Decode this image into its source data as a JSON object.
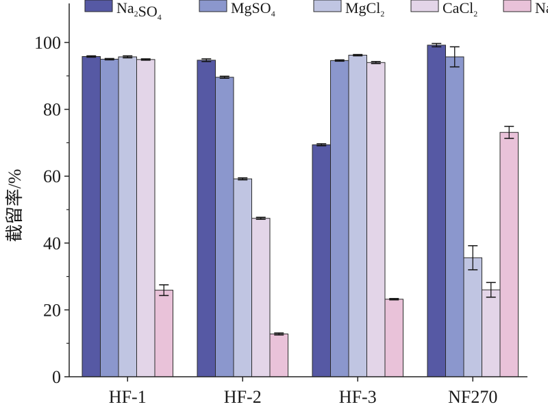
{
  "chart_data": {
    "type": "bar",
    "categories": [
      "HF-1",
      "HF-2",
      "HF-3",
      "NF270"
    ],
    "series": [
      {
        "name": "Na2SO4",
        "legend": {
          "base": "Na",
          "sub1": "2",
          "mid": "SO",
          "sub2": "4"
        },
        "color": "#5659a4",
        "values": [
          95.8,
          94.7,
          69.4,
          99.2
        ],
        "errors": [
          0.2,
          0.4,
          0.3,
          0.5
        ]
      },
      {
        "name": "MgSO4",
        "legend": {
          "base": "MgSO",
          "sub1": "4",
          "mid": "",
          "sub2": ""
        },
        "color": "#8b97cd",
        "values": [
          95.0,
          89.6,
          94.6,
          95.7
        ],
        "errors": [
          0.2,
          0.3,
          0.2,
          3.0
        ]
      },
      {
        "name": "MgCl2",
        "legend": {
          "base": "MgCl",
          "sub1": "2",
          "mid": "",
          "sub2": ""
        },
        "color": "#c0c5e2",
        "values": [
          95.7,
          59.2,
          96.2,
          35.6
        ],
        "errors": [
          0.3,
          0.3,
          0.2,
          3.6
        ]
      },
      {
        "name": "CaCl2",
        "legend": {
          "base": "CaCl",
          "sub1": "2",
          "mid": "",
          "sub2": ""
        },
        "color": "#e3d5e8",
        "values": [
          94.9,
          47.4,
          94.0,
          26.0
        ],
        "errors": [
          0.2,
          0.3,
          0.3,
          2.2
        ]
      },
      {
        "name": "NaCl",
        "legend": {
          "base": "NaCl",
          "sub1": "",
          "mid": "",
          "sub2": ""
        },
        "color": "#e9c2d9",
        "values": [
          25.9,
          12.8,
          23.2,
          73.1
        ],
        "errors": [
          1.6,
          0.3,
          0.2,
          1.8
        ]
      }
    ],
    "ylabel": "截留率/%",
    "xlabel": "",
    "ylim": [
      0,
      110
    ],
    "yticks": [
      0,
      20,
      40,
      60,
      80,
      100
    ],
    "legend_position": "top",
    "grid": false
  }
}
